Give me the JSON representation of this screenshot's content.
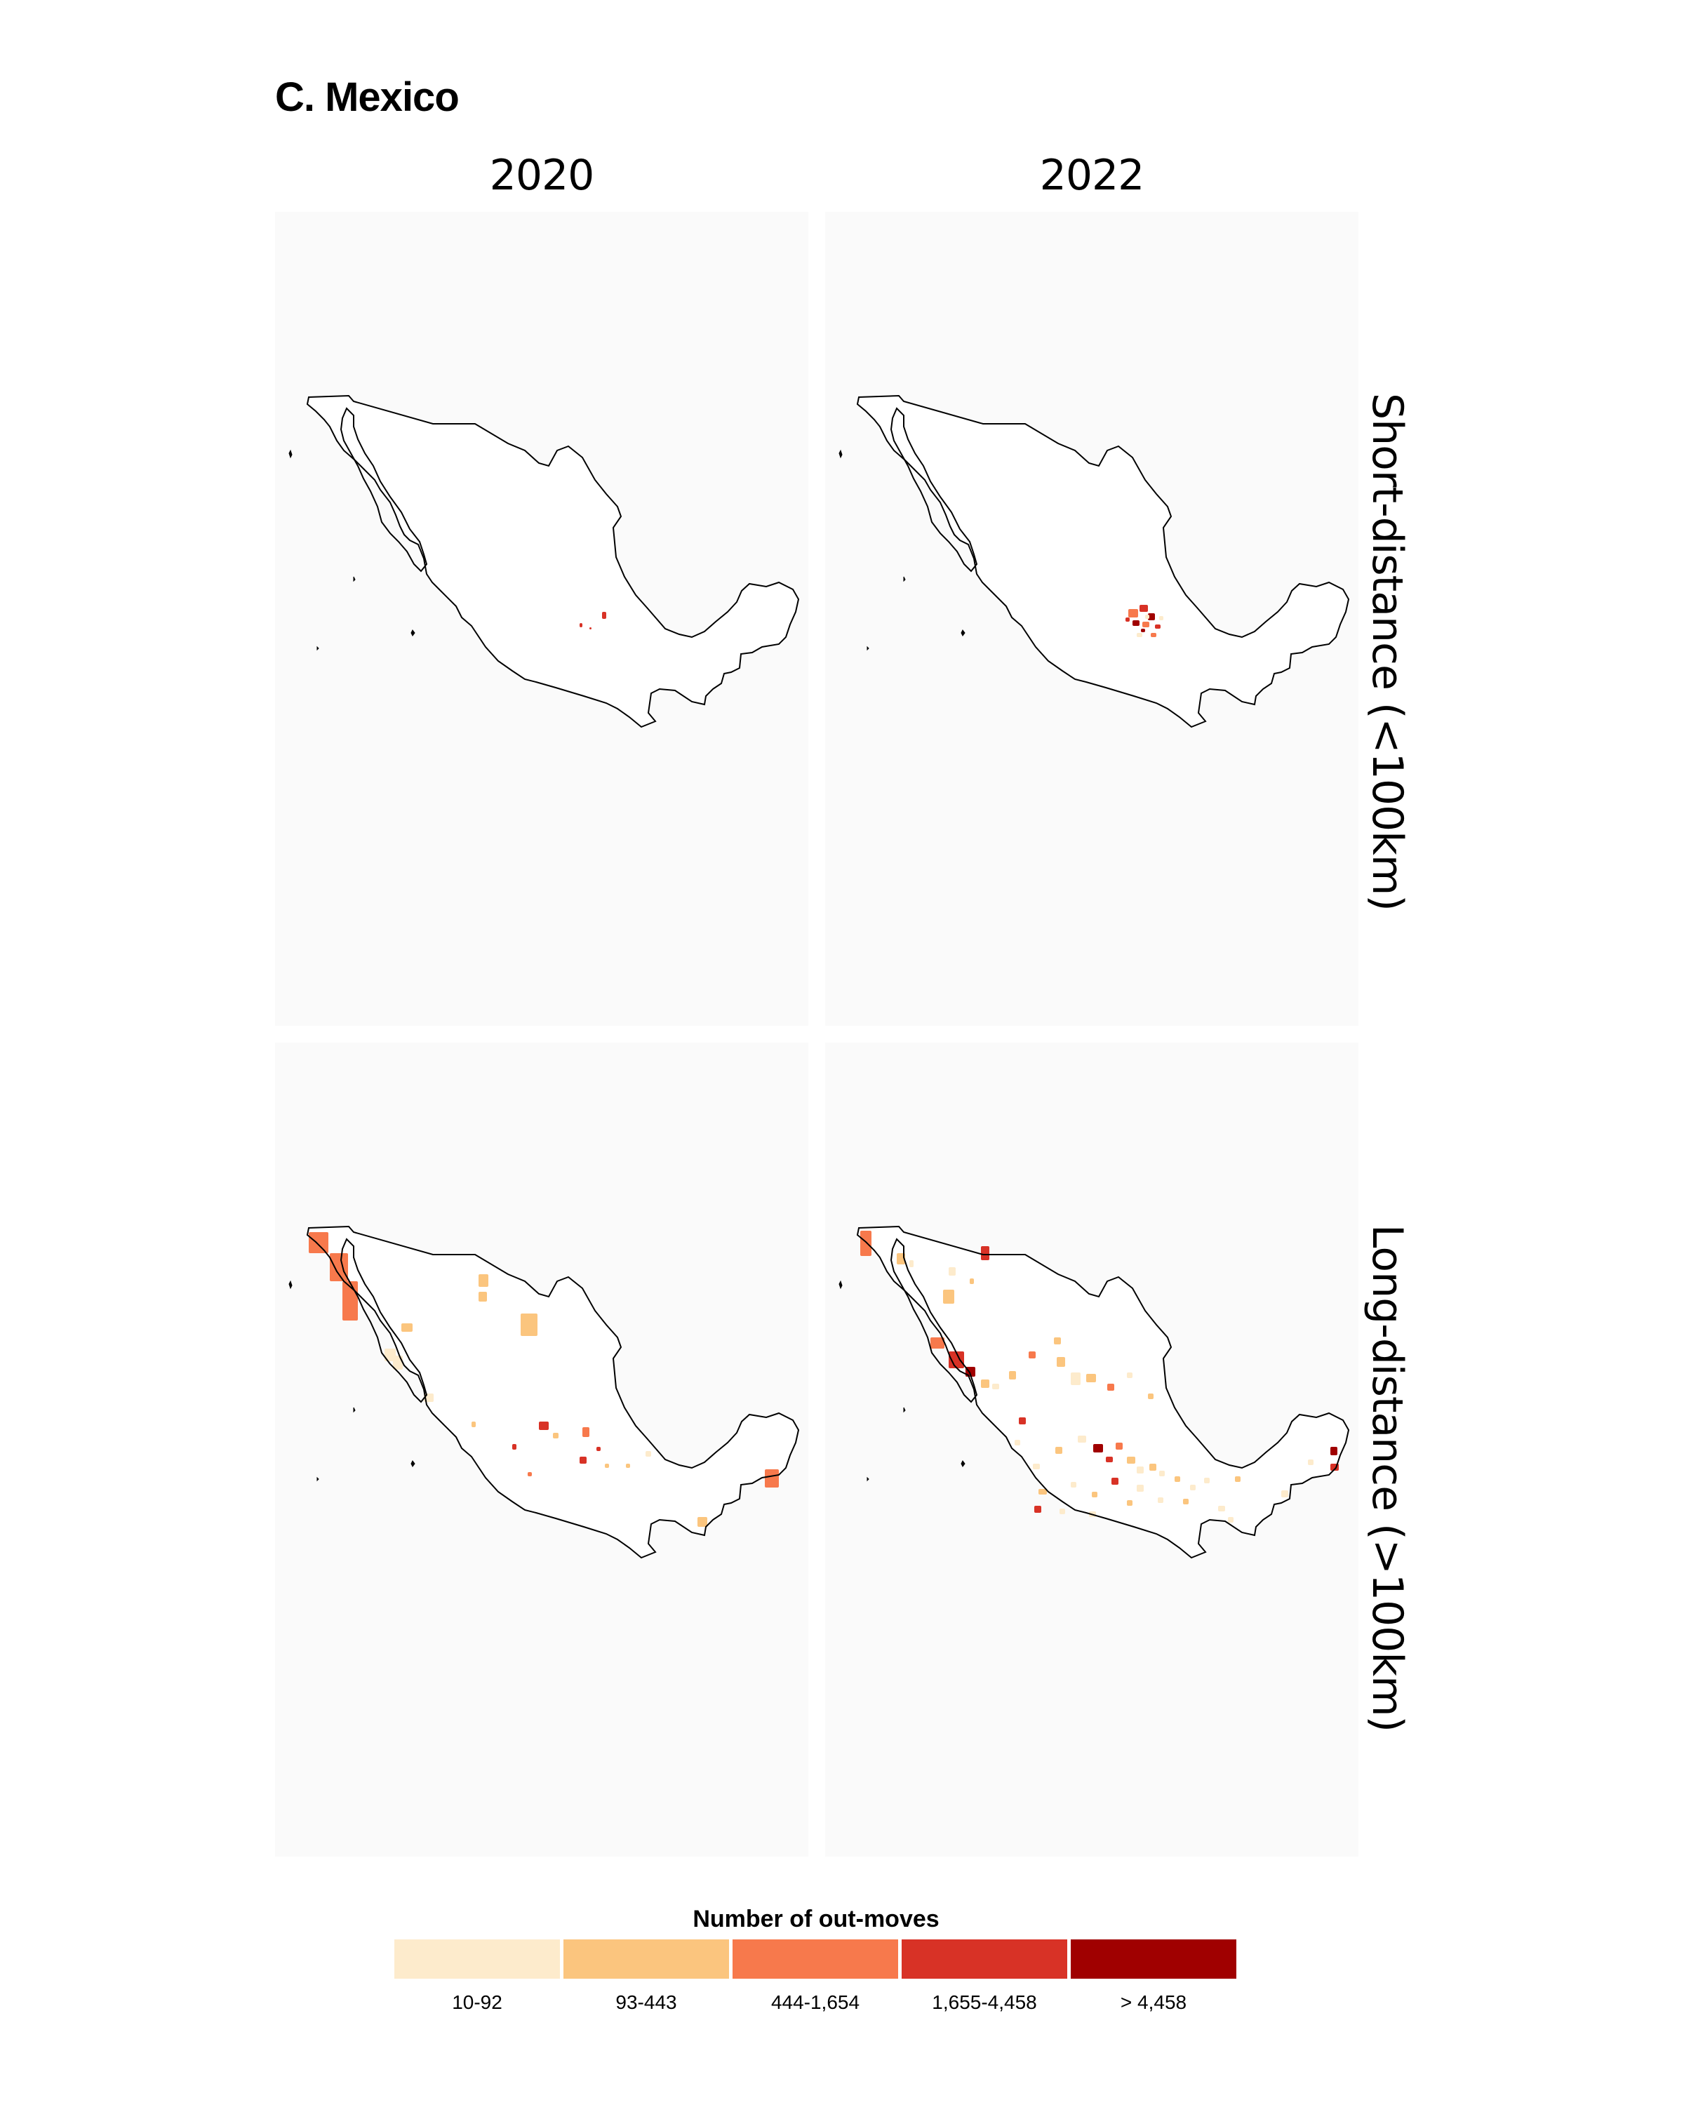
{
  "figure": {
    "title": "C. Mexico"
  },
  "columns": [
    "2020",
    "2022"
  ],
  "rows": [
    "Short-distance (<100km)",
    "Long-distance (>100km)"
  ],
  "legend": {
    "title": "Number of out-moves",
    "classes": [
      {
        "label": "10-92",
        "color": "#fdebcc"
      },
      {
        "label": "93-443",
        "color": "#fbc57e"
      },
      {
        "label": "444-1,654",
        "color": "#f7794c"
      },
      {
        "label": "1,655-4,458",
        "color": "#d83226"
      },
      {
        "label": "> 4,458",
        "color": "#a00000"
      }
    ]
  },
  "map_style": {
    "land_fill": "#ffffff",
    "border_color": "#000000",
    "panel_background": "#fafafa"
  },
  "panels": [
    {
      "year": "2020",
      "distance": "Short-distance (<100km)",
      "regions_shaded": "few small municipalities in central Mexico",
      "highlighted_classes": [
        "1,655-4,458"
      ]
    },
    {
      "year": "2022",
      "distance": "Short-distance (<100km)",
      "regions_shaded": "dense cluster around Mexico City",
      "highlighted_classes": [
        "10-92",
        "444-1,654",
        "1,655-4,458",
        "> 4,458"
      ]
    },
    {
      "year": "2020",
      "distance": "Long-distance (>100km)",
      "regions_shaded": "scattered municipalities incl. Baja California and Quintana Roo",
      "highlighted_classes": [
        "10-92",
        "93-443",
        "444-1,654",
        "1,655-4,458"
      ]
    },
    {
      "year": "2022",
      "distance": "Long-distance (>100km)",
      "regions_shaded": "widespread municipalities incl. Nayarit coast and central Mexico",
      "highlighted_classes": [
        "10-92",
        "93-443",
        "444-1,654",
        "1,655-4,458",
        "> 4,458"
      ]
    }
  ]
}
